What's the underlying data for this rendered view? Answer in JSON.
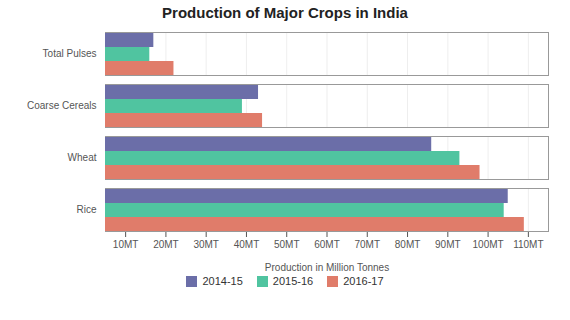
{
  "chart_data": {
    "type": "bar",
    "orientation": "horizontal",
    "title": "Production of Major Crops in India",
    "xlabel": "Production in Million Tonnes",
    "categories": [
      "Total Pulses",
      "Coarse Cereals",
      "Wheat",
      "Rice"
    ],
    "series": [
      {
        "name": "2014-15",
        "color": "#6b6ea8",
        "values": [
          17,
          43,
          86,
          105
        ]
      },
      {
        "name": "2015-16",
        "color": "#50c4a0",
        "values": [
          16,
          39,
          93,
          104
        ]
      },
      {
        "name": "2016-17",
        "color": "#e07c6a",
        "values": [
          22,
          44,
          98,
          109
        ]
      }
    ],
    "xlim": [
      5,
      115
    ],
    "xticks": [
      {
        "value": 10,
        "label": "10MT"
      },
      {
        "value": 20,
        "label": "20MT"
      },
      {
        "value": 30,
        "label": "30MT"
      },
      {
        "value": 40,
        "label": "40MT"
      },
      {
        "value": 50,
        "label": "50MT"
      },
      {
        "value": 60,
        "label": "60MT"
      },
      {
        "value": 70,
        "label": "70MT"
      },
      {
        "value": 80,
        "label": "80MT"
      },
      {
        "value": 90,
        "label": "90MT"
      },
      {
        "value": 100,
        "label": "100MT"
      },
      {
        "value": 110,
        "label": "110MT"
      }
    ],
    "grid": true,
    "legend": "bottom"
  }
}
